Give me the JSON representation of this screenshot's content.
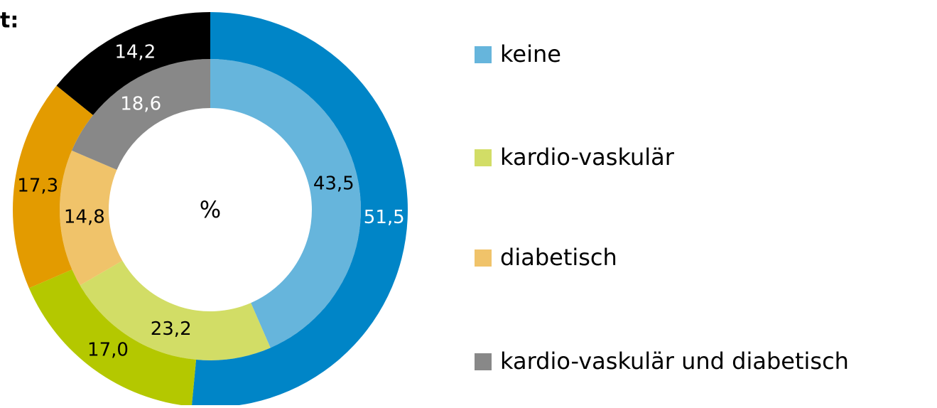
{
  "chart_data": {
    "type": "donut",
    "title": "t:",
    "center_label": "%",
    "categories": [
      "keine",
      "kardio-vaskulär",
      "diabetisch",
      "kardio-vaskulär und diabetisch"
    ],
    "legend_colors": [
      "#66b5dc",
      "#d2dd66",
      "#f0c36a",
      "#888888"
    ],
    "series": [
      {
        "values": [
          43.5,
          23.2,
          14.8,
          18.6
        ],
        "value_labels": [
          "43,5",
          "23,2",
          "14,8",
          "18,6"
        ],
        "colors": [
          "#66b5dc",
          "#d2dd66",
          "#f0c36a",
          "#888888"
        ]
      },
      {
        "values": [
          51.5,
          17.0,
          17.3,
          14.2
        ],
        "value_labels": [
          "51,5",
          "17,0",
          "17,3",
          "14,2"
        ],
        "colors": [
          "#0085c7",
          "#b4c800",
          "#e39b00",
          "#000000"
        ]
      }
    ],
    "legend": "right"
  }
}
